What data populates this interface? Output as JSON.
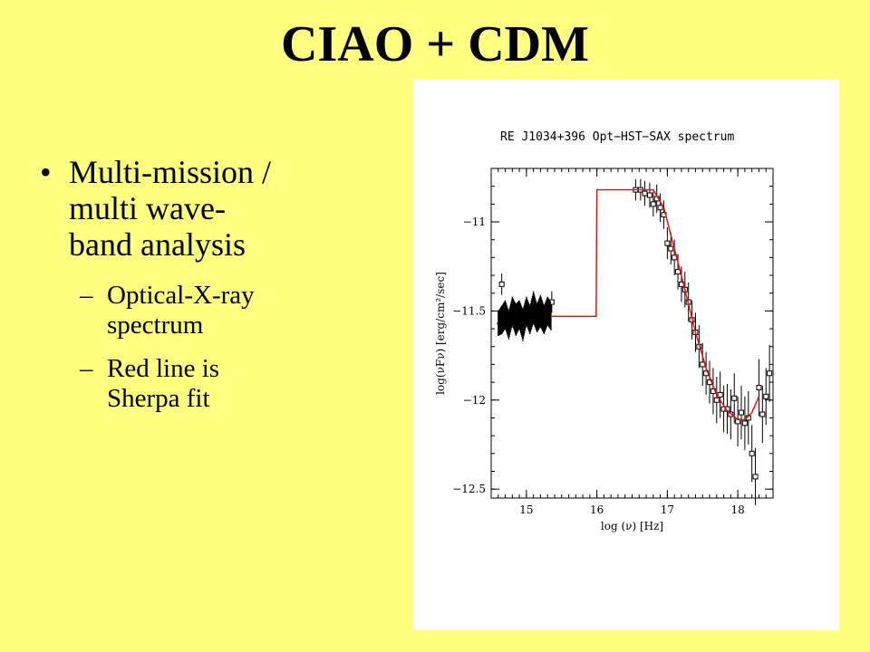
{
  "slide": {
    "title": "CIAO + CDM",
    "bullet": "Multi-mission / multi wave-band analysis",
    "bullet_lines": [
      "Multi-mission /",
      "multi wave-",
      "band analysis"
    ],
    "sub_bullets": [
      {
        "lines": [
          "Optical-X-ray",
          "spectrum"
        ]
      },
      {
        "lines": [
          "Red line is",
          "Sherpa fit"
        ]
      }
    ]
  },
  "chart_data": {
    "type": "scatter",
    "title": "RE J1034+396    Opt−HST−SAX spectrum",
    "xlabel": "log (ν) [Hz]",
    "ylabel": "log(νFν) [erg/cm²/sec]",
    "xlim": [
      14.5,
      18.5
    ],
    "ylim": [
      -12.55,
      -10.7
    ],
    "x_ticks": [
      15,
      16,
      17,
      18
    ],
    "y_ticks": [
      -11,
      -11.5,
      -12,
      -12.5
    ],
    "y_tick_labels": [
      "−11",
      "−11.5",
      "−12",
      "−12.5"
    ],
    "grid": false,
    "series": [
      {
        "marker": "errorbar",
        "color": "#000000",
        "points": [
          {
            "x": 14.6,
            "y": -11.57,
            "err": 0.07
          },
          {
            "x": 14.65,
            "y": -11.55,
            "err": 0.08
          },
          {
            "x": 14.7,
            "y": -11.52,
            "err": 0.08
          },
          {
            "x": 14.75,
            "y": -11.58,
            "err": 0.08
          },
          {
            "x": 14.8,
            "y": -11.5,
            "err": 0.08
          },
          {
            "x": 14.85,
            "y": -11.55,
            "err": 0.09
          },
          {
            "x": 14.9,
            "y": -11.52,
            "err": 0.08
          },
          {
            "x": 14.95,
            "y": -11.58,
            "err": 0.09
          },
          {
            "x": 15.0,
            "y": -11.5,
            "err": 0.08
          },
          {
            "x": 15.05,
            "y": -11.55,
            "err": 0.08
          },
          {
            "x": 15.1,
            "y": -11.48,
            "err": 0.09
          },
          {
            "x": 15.15,
            "y": -11.54,
            "err": 0.08
          },
          {
            "x": 15.2,
            "y": -11.5,
            "err": 0.09
          },
          {
            "x": 15.25,
            "y": -11.55,
            "err": 0.08
          },
          {
            "x": 15.3,
            "y": -11.5,
            "err": 0.08
          },
          {
            "x": 15.35,
            "y": -11.53,
            "err": 0.08
          }
        ]
      },
      {
        "marker": "square",
        "color": "#000000",
        "points": [
          {
            "x": 14.65,
            "y": -11.35,
            "err": 0.06
          },
          {
            "x": 15.36,
            "y": -11.45,
            "err": 0.06
          },
          {
            "x": 16.55,
            "y": -10.82,
            "err": 0.06
          },
          {
            "x": 16.62,
            "y": -10.82,
            "err": 0.06
          },
          {
            "x": 16.68,
            "y": -10.84,
            "err": 0.07
          },
          {
            "x": 16.75,
            "y": -10.85,
            "err": 0.07
          },
          {
            "x": 16.8,
            "y": -10.9,
            "err": 0.07
          },
          {
            "x": 16.85,
            "y": -10.87,
            "err": 0.08
          },
          {
            "x": 16.9,
            "y": -10.92,
            "err": 0.08
          },
          {
            "x": 16.95,
            "y": -10.96,
            "err": 0.08
          },
          {
            "x": 17.0,
            "y": -11.12,
            "err": 0.09
          },
          {
            "x": 17.05,
            "y": -11.15,
            "err": 0.09
          },
          {
            "x": 17.1,
            "y": -11.2,
            "err": 0.1
          },
          {
            "x": 17.15,
            "y": -11.28,
            "err": 0.1
          },
          {
            "x": 17.2,
            "y": -11.35,
            "err": 0.1
          },
          {
            "x": 17.25,
            "y": -11.38,
            "err": 0.1
          },
          {
            "x": 17.3,
            "y": -11.45,
            "err": 0.11
          },
          {
            "x": 17.35,
            "y": -11.55,
            "err": 0.11
          },
          {
            "x": 17.4,
            "y": -11.62,
            "err": 0.11
          },
          {
            "x": 17.45,
            "y": -11.7,
            "err": 0.12
          },
          {
            "x": 17.5,
            "y": -11.8,
            "err": 0.12
          },
          {
            "x": 17.55,
            "y": -11.85,
            "err": 0.12
          },
          {
            "x": 17.6,
            "y": -11.9,
            "err": 0.12
          },
          {
            "x": 17.65,
            "y": -11.95,
            "err": 0.13
          },
          {
            "x": 17.7,
            "y": -12.0,
            "err": 0.13
          },
          {
            "x": 17.75,
            "y": -11.97,
            "err": 0.13
          },
          {
            "x": 17.8,
            "y": -12.05,
            "err": 0.13
          },
          {
            "x": 17.85,
            "y": -12.05,
            "err": 0.14
          },
          {
            "x": 17.9,
            "y": -12.08,
            "err": 0.14
          },
          {
            "x": 17.95,
            "y": -11.99,
            "err": 0.14
          },
          {
            "x": 18.0,
            "y": -12.12,
            "err": 0.14
          },
          {
            "x": 18.05,
            "y": -12.07,
            "err": 0.15
          },
          {
            "x": 18.1,
            "y": -12.13,
            "err": 0.15
          },
          {
            "x": 18.15,
            "y": -12.1,
            "err": 0.15
          },
          {
            "x": 18.2,
            "y": -12.3,
            "err": 0.16
          },
          {
            "x": 18.25,
            "y": -12.43,
            "err": 0.16
          },
          {
            "x": 18.3,
            "y": -11.93,
            "err": 0.16
          },
          {
            "x": 18.35,
            "y": -12.08,
            "err": 0.16
          },
          {
            "x": 18.4,
            "y": -11.98,
            "err": 0.16
          },
          {
            "x": 18.45,
            "y": -11.85,
            "err": 0.16
          }
        ]
      },
      {
        "marker": "line",
        "color": "#ff0000",
        "points": [
          {
            "x": 14.6,
            "y": -11.55
          },
          {
            "x": 14.7,
            "y": -11.6
          },
          {
            "x": 14.8,
            "y": -11.59
          },
          {
            "x": 14.9,
            "y": -11.57
          },
          {
            "x": 15.0,
            "y": -11.54
          },
          {
            "x": 15.2,
            "y": -11.53
          },
          {
            "x": 15.4,
            "y": -11.53
          },
          {
            "x": 15.99,
            "y": -11.53
          },
          {
            "x": 16.0,
            "y": -10.82
          },
          {
            "x": 16.8,
            "y": -10.82
          },
          {
            "x": 16.95,
            "y": -10.92
          },
          {
            "x": 17.1,
            "y": -11.15
          },
          {
            "x": 17.25,
            "y": -11.38
          },
          {
            "x": 17.4,
            "y": -11.62
          },
          {
            "x": 17.55,
            "y": -11.82
          },
          {
            "x": 17.7,
            "y": -11.97
          },
          {
            "x": 17.85,
            "y": -12.06
          },
          {
            "x": 18.0,
            "y": -12.11
          },
          {
            "x": 18.1,
            "y": -12.11
          },
          {
            "x": 18.2,
            "y": -12.07
          },
          {
            "x": 18.3,
            "y": -11.98
          }
        ]
      }
    ]
  }
}
